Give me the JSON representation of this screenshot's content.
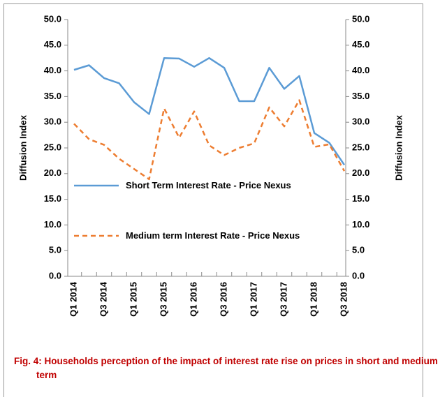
{
  "chart_data": {
    "type": "line",
    "caption": "Fig. 4:  Households  perception of the impact of interest rate rise on prices in short and medium term",
    "ylabel": "Diffusion Index",
    "y2label": "Diffusion Index",
    "categories": [
      "Q1 2014",
      null,
      "Q3 2014",
      null,
      "Q1 2015",
      null,
      "Q3 2015",
      null,
      "Q1 2016",
      null,
      "Q3 2016",
      null,
      "Q1 2017",
      null,
      "Q3 2017",
      null,
      "Q1 2018",
      null,
      "Q3 2018"
    ],
    "series": [
      {
        "name": "Short Term Interest Rate - Price Nexus",
        "color": "#5b9bd5",
        "dash": "solid",
        "values": [
          40.2,
          41.1,
          38.6,
          37.6,
          33.9,
          31.6,
          42.5,
          42.4,
          40.8,
          42.5,
          40.6,
          34.1,
          34.1,
          40.6,
          36.5,
          39.0,
          27.9,
          26.0,
          21.7
        ]
      },
      {
        "name": "Medium  term Interest Rate - Price Nexus",
        "color": "#ed7d31",
        "dash": "dashed",
        "values": [
          29.7,
          26.7,
          25.6,
          22.9,
          20.9,
          18.9,
          32.7,
          27.0,
          32.1,
          25.5,
          23.6,
          25.0,
          25.9,
          32.9,
          29.2,
          34.3,
          25.2,
          25.7,
          20.5
        ]
      }
    ],
    "ylim": [
      0,
      50
    ],
    "yticks": [
      {
        "value": 0,
        "label": "0.0"
      },
      {
        "value": 5,
        "label": "5.0"
      },
      {
        "value": 10,
        "label": "10.0"
      },
      {
        "value": 15,
        "label": "15.0"
      },
      {
        "value": 20,
        "label": "20.0"
      },
      {
        "value": 25,
        "label": "25.0"
      },
      {
        "value": 30,
        "label": "30.0"
      },
      {
        "value": 35,
        "label": "35.0"
      },
      {
        "value": 40,
        "label": "40.0"
      },
      {
        "value": 45,
        "label": "45.0"
      },
      {
        "value": 50,
        "label": "50.0"
      }
    ],
    "y2lim": [
      0,
      50
    ],
    "y2ticks": [
      {
        "value": 0,
        "label": "0.0"
      },
      {
        "value": 5,
        "label": "5.0"
      },
      {
        "value": 10,
        "label": "10.0"
      },
      {
        "value": 15,
        "label": "15.0"
      },
      {
        "value": 20,
        "label": "20.0"
      },
      {
        "value": 25,
        "label": "25.0"
      },
      {
        "value": 30,
        "label": "30.0"
      },
      {
        "value": 35,
        "label": "35.0"
      },
      {
        "value": 40,
        "label": "40.0"
      },
      {
        "value": 45,
        "label": "45.0"
      },
      {
        "value": 50,
        "label": "50.0"
      }
    ],
    "grid": false
  }
}
